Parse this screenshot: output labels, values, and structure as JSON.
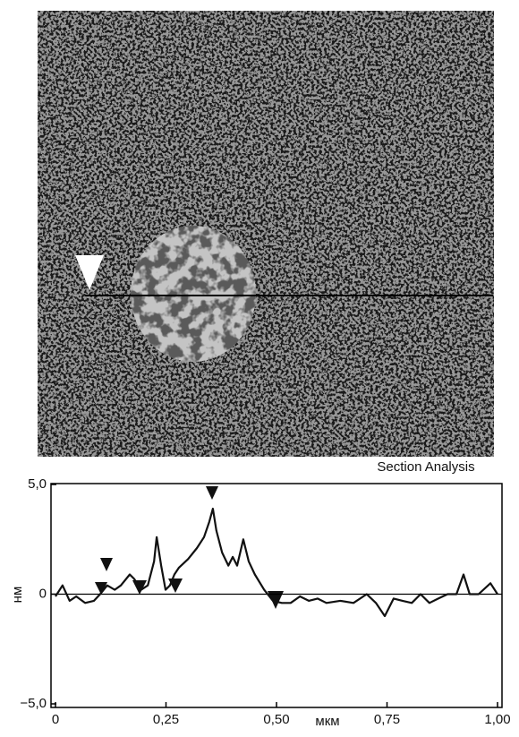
{
  "chart_data": {
    "type": "line",
    "title": "Section Analysis",
    "x_label": "мкм",
    "y_label": "нм",
    "x": [
      0,
      0.016,
      0.032,
      0.047,
      0.067,
      0.087,
      0.101,
      0.117,
      0.134,
      0.148,
      0.168,
      0.178,
      0.194,
      0.209,
      0.223,
      0.229,
      0.239,
      0.249,
      0.259,
      0.269,
      0.279,
      0.3,
      0.32,
      0.336,
      0.348,
      0.356,
      0.364,
      0.377,
      0.391,
      0.401,
      0.411,
      0.425,
      0.437,
      0.451,
      0.472,
      0.492,
      0.512,
      0.532,
      0.553,
      0.573,
      0.593,
      0.613,
      0.644,
      0.674,
      0.704,
      0.725,
      0.745,
      0.765,
      0.785,
      0.806,
      0.826,
      0.846,
      0.866,
      0.887,
      0.907,
      0.923,
      0.937,
      0.957,
      0.984,
      1.0
    ],
    "values": [
      -0.1,
      0.4,
      -0.3,
      -0.1,
      -0.4,
      -0.3,
      0,
      0.4,
      0.2,
      0.4,
      0.9,
      0.7,
      0.2,
      0.4,
      1.5,
      2.6,
      1.3,
      0.2,
      0.4,
      0.9,
      1.2,
      1.6,
      2.1,
      2.6,
      3.3,
      3.9,
      2.9,
      1.9,
      1.3,
      1.7,
      1.3,
      2.5,
      1.5,
      0.9,
      0.2,
      -0.3,
      -0.4,
      -0.4,
      -0.1,
      -0.3,
      -0.2,
      -0.4,
      -0.3,
      -0.4,
      0,
      -0.4,
      -1.0,
      -0.2,
      -0.3,
      -0.4,
      0,
      -0.4,
      -0.2,
      0,
      0,
      0.9,
      0,
      0,
      0.5,
      0
    ],
    "color": "#111111",
    "xlim": [
      0,
      1
    ],
    "ylim": [
      -5,
      5
    ],
    "xticks": [
      0,
      {
        "value": 0.25,
        "label": "0,25"
      },
      {
        "value": 0.5,
        "label": "0,50"
      },
      {
        "value": 0.75,
        "label": "0,75"
      },
      {
        "value": 1,
        "label": "1,00"
      }
    ],
    "yticks": [
      {
        "value": -5,
        "label": "−5,0"
      },
      0,
      {
        "value": 5,
        "label": "5,0"
      }
    ]
  }
}
